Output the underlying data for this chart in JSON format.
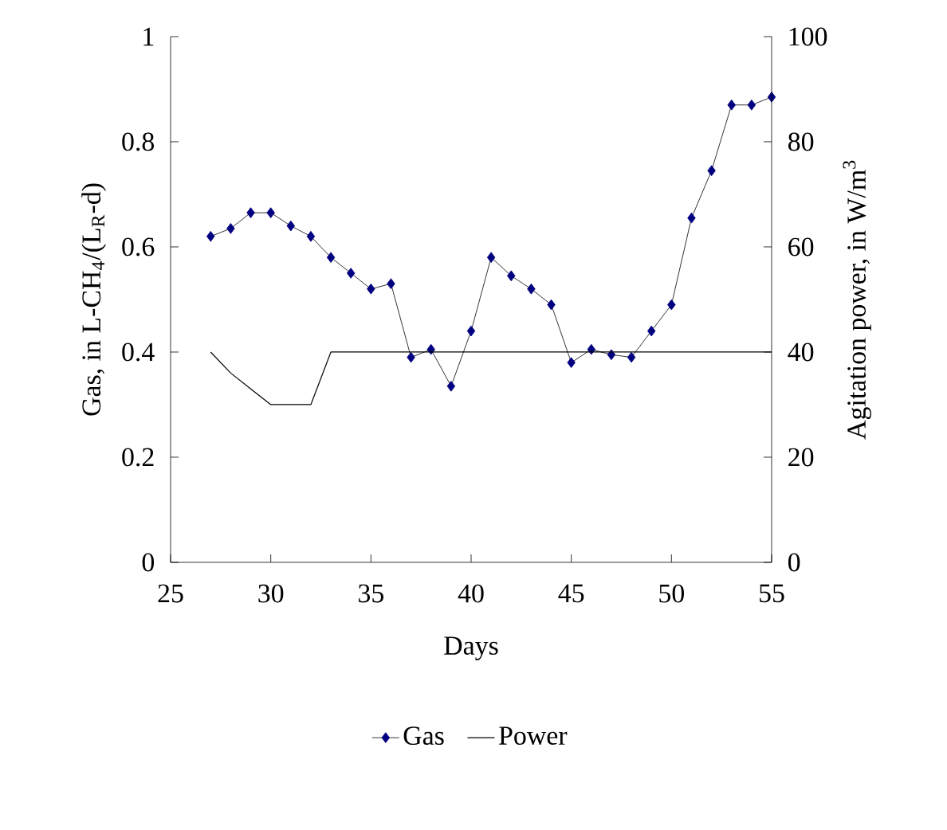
{
  "chart_data": {
    "type": "line",
    "xlabel": "Days",
    "ylabel": "Gas, in L-CH$_{4}$/(L$_{R}$-d)",
    "y2label": "Agitation power, in W/m$^{3}$",
    "x": [
      27,
      28,
      29,
      30,
      31,
      32,
      33,
      34,
      35,
      36,
      37,
      38,
      39,
      40,
      41,
      42,
      43,
      44,
      45,
      46,
      47,
      48,
      49,
      50,
      51,
      52,
      53,
      54,
      55
    ],
    "series": [
      {
        "name": "Gas",
        "color": "#000080",
        "marker": "diamond",
        "values": [
          0.62,
          0.635,
          0.665,
          0.665,
          0.64,
          0.62,
          0.58,
          0.55,
          0.52,
          0.53,
          0.39,
          0.405,
          0.335,
          0.44,
          0.58,
          0.545,
          0.52,
          0.49,
          0.38,
          0.405,
          0.395,
          0.39,
          0.44,
          0.49,
          0.655,
          0.745,
          0.87,
          0.87,
          0.885
        ]
      },
      {
        "name": "Power",
        "color": "#000000",
        "marker": "none",
        "axis": "y2",
        "values": [
          40,
          36,
          33,
          30,
          30,
          30,
          40,
          40,
          40,
          40,
          40,
          40,
          40,
          40,
          40,
          40,
          40,
          40,
          40,
          40,
          40,
          40,
          40,
          40,
          40,
          40,
          40,
          40,
          40
        ]
      }
    ],
    "xlim": [
      25,
      55
    ],
    "xticks": [
      25,
      30,
      35,
      40,
      45,
      50,
      55
    ],
    "ylim": [
      0,
      1
    ],
    "yticks": [
      0,
      0.2,
      0.4,
      0.6,
      0.8,
      1
    ],
    "y2lim": [
      0,
      100
    ],
    "y2ticks": [
      0,
      20,
      40,
      60,
      80,
      100
    ],
    "grid": false,
    "legend": "bottom"
  }
}
